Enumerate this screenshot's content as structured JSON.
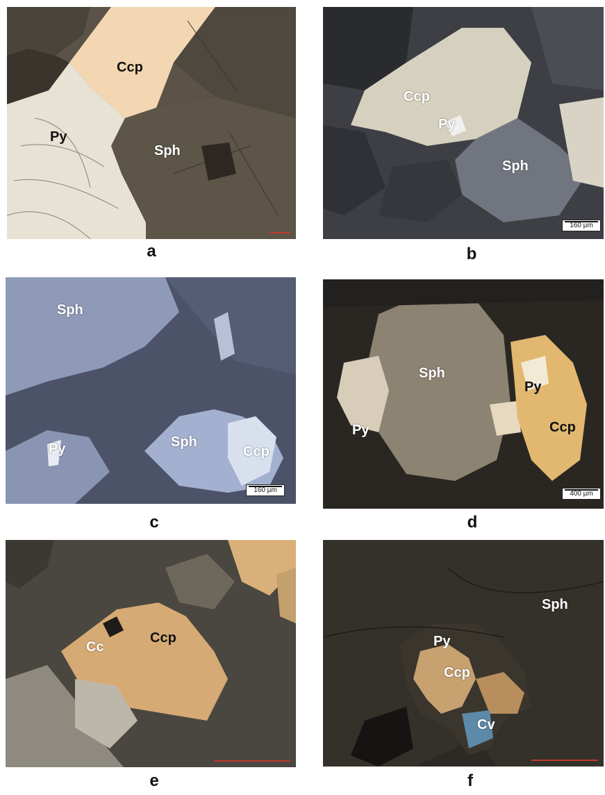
{
  "panels": [
    {
      "id": "a",
      "letter": "a",
      "labels": [
        "Ccp",
        "Py",
        "Sph"
      ],
      "scale": ""
    },
    {
      "id": "b",
      "letter": "b",
      "labels": [
        "Ccp",
        "Py",
        "Sph"
      ],
      "scale": "160 µm"
    },
    {
      "id": "c",
      "letter": "c",
      "labels": [
        "Sph",
        "Py",
        "Sph",
        "Ccp"
      ],
      "scale": "160 µm"
    },
    {
      "id": "d",
      "letter": "d",
      "labels": [
        "Sph",
        "Py",
        "Py",
        "Ccp"
      ],
      "scale": "400 µm"
    },
    {
      "id": "e",
      "letter": "e",
      "labels": [
        "Cc",
        "Ccp"
      ],
      "scale": ""
    },
    {
      "id": "f",
      "letter": "f",
      "labels": [
        "Sph",
        "Py",
        "Ccp",
        "Cv"
      ],
      "scale": ""
    }
  ]
}
